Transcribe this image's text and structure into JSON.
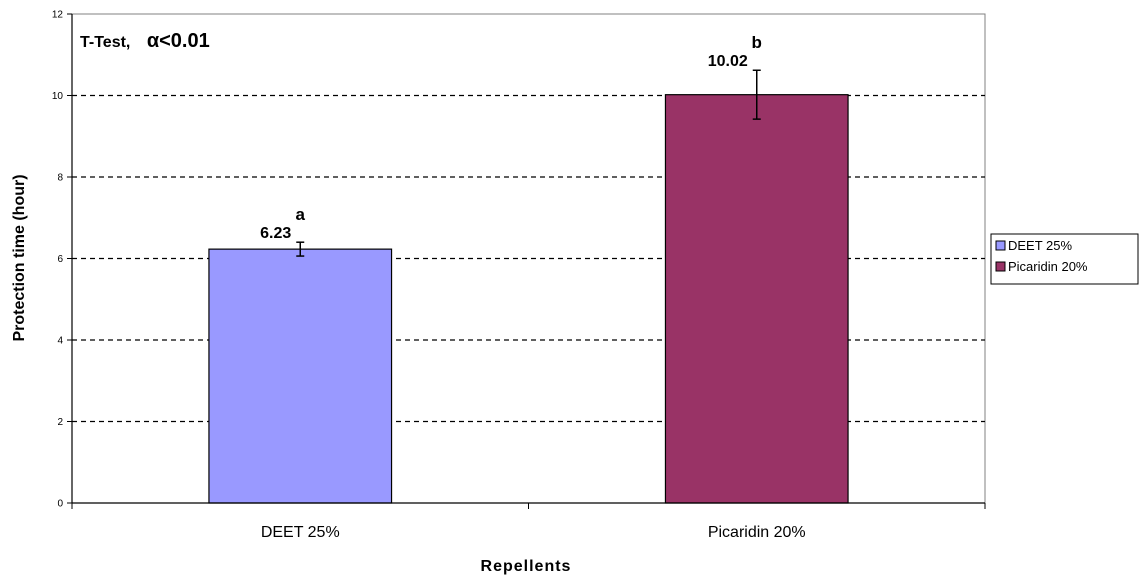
{
  "chart_data": {
    "type": "bar",
    "title": "",
    "annotation": {
      "prefix": "T-Test,",
      "condition": "α<0.01"
    },
    "xlabel": "Repellents",
    "ylabel": "Protection time (hour)",
    "ylim": [
      0,
      12
    ],
    "yticks": [
      0,
      2,
      4,
      6,
      8,
      10,
      12
    ],
    "grid": "horizontal dashed",
    "legend_position": "right",
    "categories": [
      "DEET 25%",
      "Picaridin 20%"
    ],
    "values": [
      6.23,
      10.02
    ],
    "data_labels": [
      "6.23",
      "10.02"
    ],
    "error_bars": [
      0.17,
      0.6
    ],
    "significance_letters": [
      "a",
      "b"
    ],
    "colors": [
      "#9999ff",
      "#993366"
    ],
    "legend": [
      "DEET 25%",
      "Picaridin 20%"
    ]
  }
}
